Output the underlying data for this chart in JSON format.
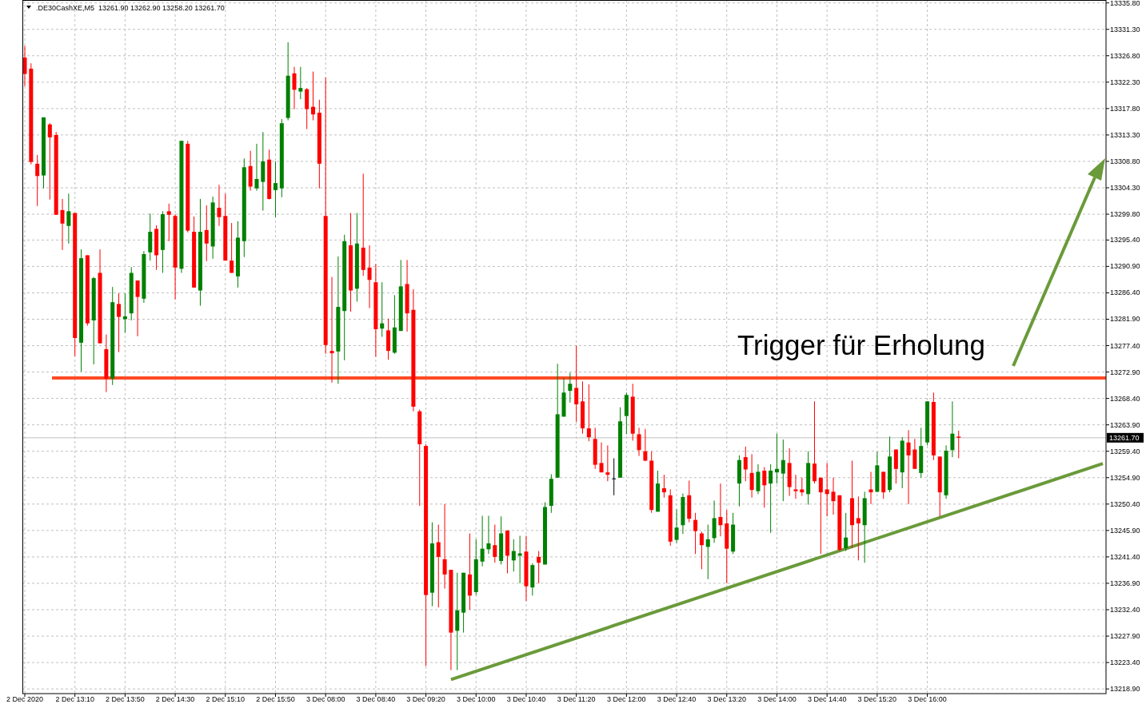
{
  "chart_data": {
    "type": "candlestick",
    "title": ".DE30CashXE,M5  13261.90 13262.90 13258.20 13261.70",
    "categories": [
      "2 Dec 2020",
      null,
      null,
      null,
      null,
      null,
      null,
      null,
      "2 Dec 13:10",
      null,
      null,
      null,
      null,
      null,
      null,
      null,
      "2 Dec 13:50",
      null,
      null,
      null,
      null,
      null,
      null,
      null,
      "2 Dec 14:30",
      null,
      null,
      null,
      null,
      null,
      null,
      null,
      "2 Dec 15:10",
      null,
      null,
      null,
      null,
      null,
      null,
      null,
      "2 Dec 15:50",
      null,
      null,
      null,
      null,
      null,
      null,
      null,
      "3 Dec 08:00",
      null,
      null,
      null,
      null,
      null,
      null,
      null,
      "3 Dec 08:40",
      null,
      null,
      null,
      null,
      null,
      null,
      null,
      "3 Dec 09:20",
      null,
      null,
      null,
      null,
      null,
      null,
      null,
      "3 Dec 10:00",
      null,
      null,
      null,
      null,
      null,
      null,
      null,
      "3 Dec 10:40",
      null,
      null,
      null,
      null,
      null,
      null,
      null,
      "3 Dec 11:20",
      null,
      null,
      null,
      null,
      null,
      null,
      null,
      "3 Dec 12:00",
      null,
      null,
      null,
      null,
      null,
      null,
      null,
      "3 Dec 12:40",
      null,
      null,
      null,
      null,
      null,
      null,
      null,
      "3 Dec 13:20",
      null,
      null,
      null,
      null,
      null,
      null,
      null,
      "3 Dec 14:00",
      null,
      null,
      null,
      null,
      null,
      null,
      null,
      "3 Dec 14:40",
      null,
      null,
      null,
      null,
      null,
      null,
      null,
      "3 Dec 15:20",
      null,
      null,
      null,
      null,
      null,
      null,
      null,
      "3 Dec 16:00",
      null,
      null,
      null,
      null,
      null,
      null,
      null,
      null,
      null,
      null,
      null,
      null,
      null,
      null,
      null,
      null,
      null,
      null,
      null,
      null,
      null,
      null,
      null,
      null,
      null,
      null,
      null,
      null
    ],
    "ohlc": [
      [
        13326.5,
        13328.5,
        13321.6,
        13323.7
      ],
      [
        13324.6,
        13325.5,
        13308.3,
        13308.7
      ],
      [
        13308.4,
        13309.9,
        13301.2,
        13306.3
      ],
      [
        13306.4,
        13316.3,
        13304.2,
        13316.3
      ],
      [
        13315.1,
        13315.3,
        13302.3,
        13312.9
      ],
      [
        13313.3,
        13313.8,
        13299.7,
        13299.7
      ],
      [
        13300.5,
        13302.4,
        13293.7,
        13298.2
      ],
      [
        13297.8,
        13303.3,
        13294.8,
        13300.3
      ],
      [
        13300.0,
        13300.0,
        13275.6,
        13278.7
      ],
      [
        13277.9,
        13293.8,
        13273.0,
        13292.3
      ],
      [
        13292.8,
        13292.8,
        13280.8,
        13281.2
      ],
      [
        13281.7,
        13289.1,
        13274.2,
        13288.9
      ],
      [
        13289.8,
        13293.8,
        13277.8,
        13277.8
      ],
      [
        13276.8,
        13279.3,
        13269.5,
        13271.8
      ],
      [
        13271.8,
        13287.4,
        13270.7,
        13284.8
      ],
      [
        13284.5,
        13286.3,
        13276.3,
        13282.3
      ],
      [
        13281.9,
        13286.3,
        13279.6,
        13282.4
      ],
      [
        13282.9,
        13290.8,
        13281.7,
        13289.8
      ],
      [
        13288.5,
        13288.5,
        13279.0,
        13285.7
      ],
      [
        13285.4,
        13293.5,
        13284.7,
        13293.0
      ],
      [
        13293.3,
        13299.9,
        13291.9,
        13296.8
      ],
      [
        13297.3,
        13297.9,
        13290.3,
        13292.8
      ],
      [
        13293.7,
        13300.3,
        13289.8,
        13299.8
      ],
      [
        13300.3,
        13301.6,
        13295.2,
        13299.7
      ],
      [
        13299.5,
        13299.8,
        13285.3,
        13290.7
      ],
      [
        13290.5,
        13312.3,
        13289.8,
        13312.3
      ],
      [
        13311.8,
        13312.3,
        13296.7,
        13297.0
      ],
      [
        13296.8,
        13299.4,
        13287.3,
        13287.3
      ],
      [
        13286.8,
        13302.4,
        13284.2,
        13296.8
      ],
      [
        13297.1,
        13301.3,
        13291.8,
        13294.8
      ],
      [
        13294.3,
        13302.8,
        13292.2,
        13301.8
      ],
      [
        13300.9,
        13304.8,
        13297.8,
        13299.3
      ],
      [
        13299.5,
        13303.3,
        13291.9,
        13291.9
      ],
      [
        13291.9,
        13298.3,
        13289.8,
        13289.8
      ],
      [
        13289.2,
        13298.6,
        13287.3,
        13295.8
      ],
      [
        13295.2,
        13309.3,
        13292.5,
        13307.8
      ],
      [
        13308.0,
        13310.6,
        13303.8,
        13304.5
      ],
      [
        13304.2,
        13311.8,
        13303.8,
        13305.8
      ],
      [
        13305.3,
        13313.8,
        13300.4,
        13308.8
      ],
      [
        13309.1,
        13310.8,
        13302.3,
        13302.4
      ],
      [
        13303.9,
        13308.8,
        13299.3,
        13305.1
      ],
      [
        13304.2,
        13316.0,
        13302.7,
        13315.3
      ],
      [
        13316.2,
        13329.1,
        13315.8,
        13323.4
      ],
      [
        13323.8,
        13324.9,
        13317.7,
        13321.0
      ],
      [
        13320.7,
        13324.9,
        13319.4,
        13321.3
      ],
      [
        13321.1,
        13321.3,
        13314.3,
        13317.7
      ],
      [
        13318.1,
        13324.1,
        13315.8,
        13316.8
      ],
      [
        13317.1,
        13319.3,
        13304.2,
        13308.4
      ],
      [
        13299.5,
        13323.1,
        13276.0,
        13277.5
      ],
      [
        13276.5,
        13289.1,
        13271.1,
        13276.1
      ],
      [
        13276.4,
        13292.6,
        13270.9,
        13284.0
      ],
      [
        13283.3,
        13296.3,
        13274.9,
        13295.2
      ],
      [
        13294.5,
        13300.0,
        13283.2,
        13286.8
      ],
      [
        13287.1,
        13300.0,
        13284.9,
        13294.8
      ],
      [
        13294.1,
        13306.7,
        13289.3,
        13290.3
      ],
      [
        13290.7,
        13294.5,
        13283.8,
        13288.6
      ],
      [
        13288.2,
        13291.3,
        13275.5,
        13280.2
      ],
      [
        13280.3,
        13288.2,
        13278.9,
        13281.2
      ],
      [
        13280.0,
        13282.0,
        13275.0,
        13276.5
      ],
      [
        13276.2,
        13286.0,
        13276.0,
        13280.5
      ],
      [
        13279.9,
        13292.0,
        13279.9,
        13287.5
      ],
      [
        13287.9,
        13292.0,
        13279.8,
        13282.9
      ],
      [
        13283.5,
        13287.0,
        13266.2,
        13267.0
      ],
      [
        13266.2,
        13266.5,
        13250.1,
        13260.6
      ],
      [
        13260.3,
        13260.6,
        13222.8,
        13234.9
      ],
      [
        13235.3,
        13247.3,
        13233.0,
        13243.7
      ],
      [
        13243.9,
        13246.9,
        13232.8,
        13241.4
      ],
      [
        13241.0,
        13250.4,
        13236.0,
        13238.4
      ],
      [
        13239.2,
        13239.2,
        13222.1,
        13228.5
      ],
      [
        13228.8,
        13238.7,
        13222.1,
        13232.3
      ],
      [
        13231.9,
        13238.7,
        13228.5,
        13238.7
      ],
      [
        13238.4,
        13245.4,
        13232.4,
        13234.8
      ],
      [
        13235.4,
        13244.4,
        13234.9,
        13241.0
      ],
      [
        13240.6,
        13248.4,
        13239.8,
        13242.8
      ],
      [
        13242.7,
        13248.4,
        13241.9,
        13243.7
      ],
      [
        13243.4,
        13246.9,
        13240.4,
        13241.4
      ],
      [
        13240.7,
        13248.3,
        13240.1,
        13245.4
      ],
      [
        13245.9,
        13245.9,
        13238.6,
        13241.6
      ],
      [
        13240.8,
        13244.4,
        13238.9,
        13242.4
      ],
      [
        13241.6,
        13245.0,
        13236.9,
        13242.0
      ],
      [
        13242.3,
        13245.0,
        13233.9,
        13236.4
      ],
      [
        13236.2,
        13240.3,
        13234.8,
        13240.0
      ],
      [
        13241.4,
        13242.4,
        13236.9,
        13240.4
      ],
      [
        13240.1,
        13250.7,
        13240.1,
        13249.9
      ],
      [
        13250.1,
        13255.5,
        13248.9,
        13254.7
      ],
      [
        13254.9,
        13274.3,
        13254.9,
        13265.7
      ],
      [
        13265.3,
        13271.9,
        13265.3,
        13269.4
      ],
      [
        13269.7,
        13272.8,
        13267.7,
        13270.9
      ],
      [
        13270.2,
        13277.4,
        13264.4,
        13267.4
      ],
      [
        13267.9,
        13271.3,
        13262.4,
        13263.3
      ],
      [
        13263.3,
        13270.8,
        13261.1,
        13261.8
      ],
      [
        13261.5,
        13263.4,
        13256.4,
        13257.1
      ],
      [
        13257.4,
        13260.9,
        13255.8,
        13255.8
      ],
      [
        13255.8,
        13260.4,
        13254.3,
        13255.4
      ],
      [
        13254.7,
        13258.2,
        13251.9,
        13254.7
      ],
      [
        13254.9,
        13266.9,
        13254.9,
        13264.5
      ],
      [
        13265.4,
        13269.4,
        13262.3,
        13269.0
      ],
      [
        13268.7,
        13270.9,
        13261.2,
        13262.4
      ],
      [
        13262.3,
        13263.4,
        13258.6,
        13259.6
      ],
      [
        13259.4,
        13263.2,
        13257.7,
        13257.8
      ],
      [
        13257.8,
        13259.4,
        13248.9,
        13249.4
      ],
      [
        13249.1,
        13256.1,
        13249.1,
        13253.9
      ],
      [
        13253.1,
        13255.4,
        13251.5,
        13252.4
      ],
      [
        13251.9,
        13252.9,
        13243.3,
        13244.0
      ],
      [
        13244.3,
        13249.5,
        13243.8,
        13246.4
      ],
      [
        13246.8,
        13252.2,
        13245.3,
        13251.6
      ],
      [
        13251.9,
        13254.4,
        13247.3,
        13247.9
      ],
      [
        13247.7,
        13248.9,
        13241.9,
        13245.8
      ],
      [
        13245.4,
        13245.7,
        13239.3,
        13243.4
      ],
      [
        13243.1,
        13246.9,
        13237.6,
        13244.4
      ],
      [
        13244.6,
        13251.0,
        13243.8,
        13248.0
      ],
      [
        13248.2,
        13253.9,
        13244.9,
        13246.8
      ],
      [
        13247.1,
        13249.4,
        13236.9,
        13242.8
      ],
      [
        13242.3,
        13248.9,
        13241.9,
        13246.9
      ],
      [
        13253.9,
        13258.7,
        13250.0,
        13257.9
      ],
      [
        13258.4,
        13260.2,
        13254.3,
        13256.3
      ],
      [
        13255.7,
        13258.9,
        13251.5,
        13252.8
      ],
      [
        13252.6,
        13257.2,
        13252.1,
        13255.9
      ],
      [
        13256.1,
        13256.7,
        13249.8,
        13253.6
      ],
      [
        13253.9,
        13257.2,
        13245.5,
        13256.1
      ],
      [
        13255.8,
        13262.4,
        13253.9,
        13256.4
      ],
      [
        13255.6,
        13261.4,
        13250.9,
        13257.9
      ],
      [
        13257.4,
        13259.9,
        13251.8,
        13253.3
      ],
      [
        13252.9,
        13255.4,
        13251.3,
        13252.6
      ],
      [
        13252.9,
        13254.9,
        13251.8,
        13252.4
      ],
      [
        13252.1,
        13259.4,
        13250.3,
        13257.4
      ],
      [
        13257.3,
        13267.9,
        13253.9,
        13254.3
      ],
      [
        13254.9,
        13254.9,
        13241.9,
        13252.4
      ],
      [
        13252.9,
        13257.4,
        13248.3,
        13252.1
      ],
      [
        13252.5,
        13254.9,
        13248.6,
        13250.9
      ],
      [
        13251.9,
        13251.9,
        13242.4,
        13242.6
      ],
      [
        13242.9,
        13248.9,
        13242.4,
        13244.7
      ],
      [
        13251.4,
        13257.8,
        13242.9,
        13246.8
      ],
      [
        13248.0,
        13251.7,
        13240.8,
        13247.1
      ],
      [
        13246.8,
        13252.5,
        13240.4,
        13251.4
      ],
      [
        13252.9,
        13255.9,
        13250.4,
        13252.4
      ],
      [
        13252.5,
        13259.3,
        13252.4,
        13257.0
      ],
      [
        13255.9,
        13255.9,
        13251.3,
        13252.4
      ],
      [
        13252.8,
        13261.9,
        13252.4,
        13258.5
      ],
      [
        13259.7,
        13259.7,
        13253.9,
        13256.4
      ],
      [
        13255.8,
        13261.8,
        13253.1,
        13261.2
      ],
      [
        13260.9,
        13263.0,
        13250.4,
        13258.7
      ],
      [
        13259.7,
        13261.5,
        13256.4,
        13256.4
      ],
      [
        13255.7,
        13263.4,
        13254.9,
        13260.3
      ],
      [
        13260.9,
        13267.9,
        13260.4,
        13267.9
      ],
      [
        13267.8,
        13269.4,
        13257.9,
        13258.7
      ],
      [
        13258.5,
        13258.5,
        13248.3,
        13252.4
      ],
      [
        13251.9,
        13260.4,
        13251.3,
        13259.5
      ],
      [
        13259.6,
        13267.9,
        13258.4,
        13262.4
      ],
      [
        13261.9,
        13262.9,
        13258.2,
        13261.7
      ],
      null,
      null,
      null,
      null,
      null,
      null,
      null,
      null,
      null,
      null,
      null,
      null,
      null,
      null,
      null,
      null,
      null,
      null,
      null,
      null,
      null,
      null,
      null
    ],
    "series": [
      {
        "type": "line",
        "color": "#6a9a3a",
        "values": [
          null,
          null,
          null,
          null,
          null,
          null,
          null,
          null,
          null,
          null,
          null,
          null,
          null,
          null,
          null,
          null,
          null,
          null,
          null,
          null,
          null,
          null,
          null,
          null,
          null,
          null,
          null,
          null,
          null,
          null,
          null,
          null,
          null,
          null,
          null,
          null,
          null,
          null,
          null,
          null,
          null,
          null,
          null,
          null,
          null,
          null,
          null,
          null,
          null,
          null,
          null,
          null,
          null,
          null,
          null,
          null,
          null,
          null,
          null,
          null,
          null,
          null,
          null,
          null,
          null,
          null,
          null,
          null,
          13220.5,
          null,
          null,
          null,
          null,
          null,
          null,
          null,
          null,
          null,
          null,
          null,
          null,
          null,
          null,
          null,
          null,
          null,
          null,
          null,
          null,
          null,
          null,
          null,
          null,
          null,
          null,
          null,
          null,
          null,
          null,
          null,
          null,
          null,
          null,
          null,
          null,
          null,
          null,
          null,
          null,
          null,
          null,
          null,
          null,
          null,
          null,
          null,
          null,
          null,
          null,
          null,
          null,
          null,
          null,
          null,
          null,
          null,
          null,
          null,
          null,
          null,
          null,
          null,
          null,
          null,
          null,
          null,
          null,
          null,
          null,
          null,
          null,
          null,
          null,
          null,
          null,
          null,
          null,
          null,
          null,
          null,
          null,
          null,
          null,
          null,
          null,
          null,
          null,
          null,
          null,
          null,
          null,
          null,
          null,
          null,
          null,
          null,
          null,
          null,
          null,
          null,
          null,
          null,
          13257.3
        ]
      }
    ],
    "ylim": [
      13218.1,
      13336.3
    ],
    "yticks": [
      {
        "value": 13335.8,
        "label": "13335.80"
      },
      {
        "value": 13331.3,
        "label": "13331.30"
      },
      {
        "value": 13326.8,
        "label": "13326.80"
      },
      {
        "value": 13322.3,
        "label": "13322.30"
      },
      {
        "value": 13317.8,
        "label": "13317.80"
      },
      {
        "value": 13313.3,
        "label": "13313.30"
      },
      {
        "value": 13308.8,
        "label": "13308.80"
      },
      {
        "value": 13304.3,
        "label": "13304.30"
      },
      {
        "value": 13299.8,
        "label": "13299.80"
      },
      {
        "value": 13295.4,
        "label": "13295.40"
      },
      {
        "value": 13290.9,
        "label": "13290.90"
      },
      {
        "value": 13286.4,
        "label": "13286.40"
      },
      {
        "value": 13281.9,
        "label": "13281.90"
      },
      {
        "value": 13277.4,
        "label": "13277.40"
      },
      {
        "value": 13272.9,
        "label": "13272.90"
      },
      {
        "value": 13268.4,
        "label": "13268.40"
      },
      {
        "value": 13263.9,
        "label": "13263.90"
      },
      {
        "value": 13259.4,
        "label": "13259.40"
      },
      {
        "value": 13254.9,
        "label": "13254.90"
      },
      {
        "value": 13250.4,
        "label": "13250.40"
      },
      {
        "value": 13245.9,
        "label": "13245.90"
      },
      {
        "value": 13241.4,
        "label": "13241.40"
      },
      {
        "value": 13236.9,
        "label": "13236.90"
      },
      {
        "value": 13232.4,
        "label": "13232.40"
      },
      {
        "value": 13227.9,
        "label": "13227.90"
      },
      {
        "value": 13223.4,
        "label": "13223.40"
      },
      {
        "value": 13218.9,
        "label": "13218.90"
      }
    ],
    "ref_lines": [
      {
        "axis": "y",
        "value": 13271.9,
        "color": "#ff4a24"
      },
      {
        "axis": "y",
        "value": 13261.7,
        "label": "13261.70",
        "color": "#c0c0c0"
      }
    ],
    "annotations": [
      "Trigger für Erholung"
    ],
    "grid": true
  }
}
